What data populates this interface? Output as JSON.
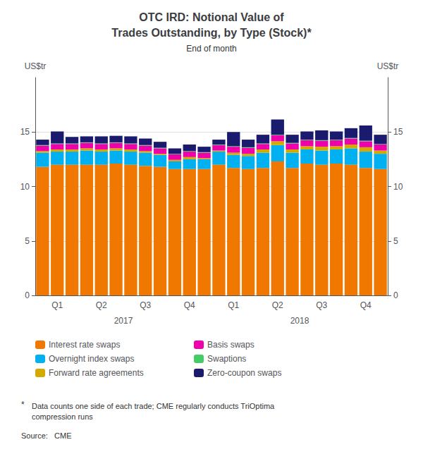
{
  "chart_data": {
    "type": "bar",
    "stacked": true,
    "title": "OTC IRD: Notional Value of\nTrades Outstanding, by Type (Stock)*",
    "subtitle": "End of month",
    "ylabel": "US$tr",
    "y2label": "US$tr",
    "categories": [
      null,
      "Q1",
      null,
      null,
      "Q2",
      null,
      null,
      "Q3",
      null,
      null,
      "Q4",
      null,
      null,
      "Q1",
      null,
      null,
      "Q2",
      null,
      null,
      "Q3",
      null,
      null,
      "Q4",
      null
    ],
    "group_labels": [
      "2017",
      "2018"
    ],
    "ylim": [
      0,
      20
    ],
    "yticks": [
      0,
      5,
      10,
      15
    ],
    "y2lim": [
      0,
      20
    ],
    "y2ticks": [
      0,
      5,
      10,
      15
    ],
    "grid": true,
    "legend": "bottom",
    "series": [
      {
        "name": "Interest rate swaps",
        "color": "#f07800",
        "values": [
          11.8,
          12.0,
          12.0,
          12.0,
          12.0,
          12.1,
          12.0,
          11.9,
          11.8,
          11.6,
          11.6,
          11.6,
          12.0,
          11.7,
          11.6,
          11.7,
          12.3,
          11.7,
          12.1,
          12.0,
          12.1,
          12.0,
          11.7,
          11.6
        ]
      },
      {
        "name": "Overnight index swaps",
        "color": "#00b0f0",
        "values": [
          1.3,
          1.2,
          1.2,
          1.3,
          1.2,
          1.2,
          1.2,
          1.2,
          1.1,
          0.7,
          0.9,
          0.9,
          1.2,
          1.2,
          1.2,
          1.4,
          1.5,
          1.4,
          1.3,
          1.3,
          1.3,
          1.5,
          1.5,
          1.4
        ]
      },
      {
        "name": "Forward rate agreements",
        "color": "#d4aa00",
        "values": [
          0.15,
          0.2,
          0.2,
          0.2,
          0.2,
          0.2,
          0.2,
          0.15,
          0.1,
          0.15,
          0.2,
          0.1,
          0.1,
          0.2,
          0.2,
          0.3,
          0.35,
          0.3,
          0.3,
          0.35,
          0.3,
          0.35,
          0.4,
          0.3
        ]
      },
      {
        "name": "Basis swaps",
        "color": "#ee00aa",
        "values": [
          0.5,
          0.5,
          0.5,
          0.5,
          0.5,
          0.5,
          0.5,
          0.5,
          0.5,
          0.5,
          0.5,
          0.5,
          0.5,
          0.55,
          0.55,
          0.5,
          0.55,
          0.55,
          0.55,
          0.55,
          0.55,
          0.55,
          0.55,
          0.55
        ]
      },
      {
        "name": "Swaptions",
        "color": "#44cc66",
        "values": [
          0.05,
          0.05,
          0.05,
          0.05,
          0.05,
          0.05,
          0.05,
          0.05,
          0.05,
          0.05,
          0.05,
          0.05,
          0.05,
          0.05,
          0.05,
          0.05,
          0.05,
          0.05,
          0.05,
          0.05,
          0.05,
          0.05,
          0.05,
          0.05
        ]
      },
      {
        "name": "Zero-coupon swaps",
        "color": "#1a1a6e",
        "values": [
          0.5,
          1.1,
          0.6,
          0.55,
          0.65,
          0.6,
          0.65,
          0.6,
          0.55,
          0.5,
          0.6,
          0.5,
          0.45,
          1.3,
          0.7,
          0.8,
          1.4,
          0.75,
          0.75,
          0.9,
          0.75,
          0.9,
          1.4,
          0.85
        ]
      }
    ],
    "footnote_mark": "*",
    "footnote": "Data counts one side of each trade; CME regularly conducts TriOptima\ncompression runs",
    "source": "Source:   CME"
  }
}
